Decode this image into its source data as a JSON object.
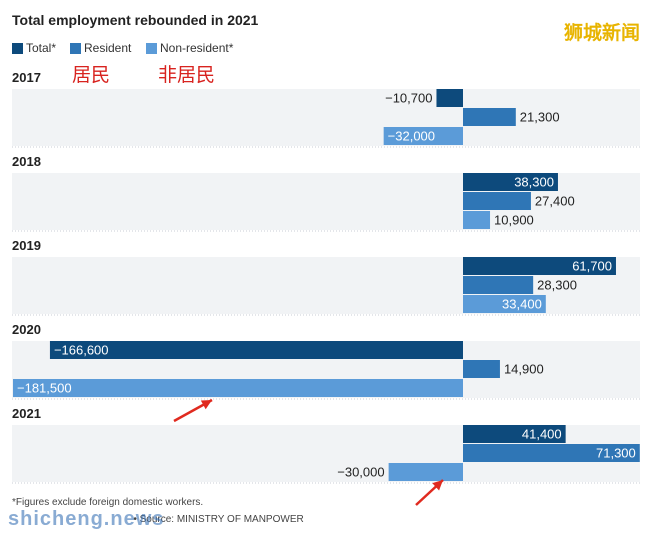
{
  "title": "Total employment rebounded in 2021",
  "watermark": "狮城新闻",
  "legend": [
    {
      "label": "Total*",
      "color": "#0d4a7c"
    },
    {
      "label": "Resident",
      "color": "#2f76b6"
    },
    {
      "label": "Non-resident*",
      "color": "#5b9bd8"
    }
  ],
  "annotations": {
    "resident_cn": "居民",
    "nonresident_cn": "非居民"
  },
  "footnote": "*Figures exclude foreign domestic workers.",
  "source": "• Source: MINISTRY OF MANPOWER",
  "site_watermark": "shicheng.news",
  "colors": {
    "total": "#0d4a7c",
    "resident": "#2f76b6",
    "nonresident": "#5b9bd8",
    "panel": "#f1f3f5",
    "arrow": "#e02a1f"
  },
  "chart_data": {
    "type": "bar",
    "orientation": "horizontal",
    "title": "Total employment rebounded in 2021",
    "categories": [
      "2017",
      "2018",
      "2019",
      "2020",
      "2021"
    ],
    "series": [
      {
        "name": "Total*",
        "values": [
          -10700,
          38300,
          61700,
          -166600,
          41400
        ],
        "labels": [
          "−10,700",
          "38,300",
          "61,700",
          "−166,600",
          "41,400"
        ]
      },
      {
        "name": "Resident",
        "values": [
          21300,
          27400,
          28300,
          14900,
          71300
        ],
        "labels": [
          "21,300",
          "27,400",
          "28,300",
          "14,900",
          "71,300"
        ]
      },
      {
        "name": "Non-resident*",
        "values": [
          -32000,
          10900,
          33400,
          -181500,
          -30000
        ],
        "labels": [
          "−32,000",
          "10,900",
          "33,400",
          "−181,500",
          "−30,000"
        ]
      }
    ],
    "xlim": [
      -190000,
      75000
    ],
    "grid": false,
    "legend": "top-left"
  }
}
